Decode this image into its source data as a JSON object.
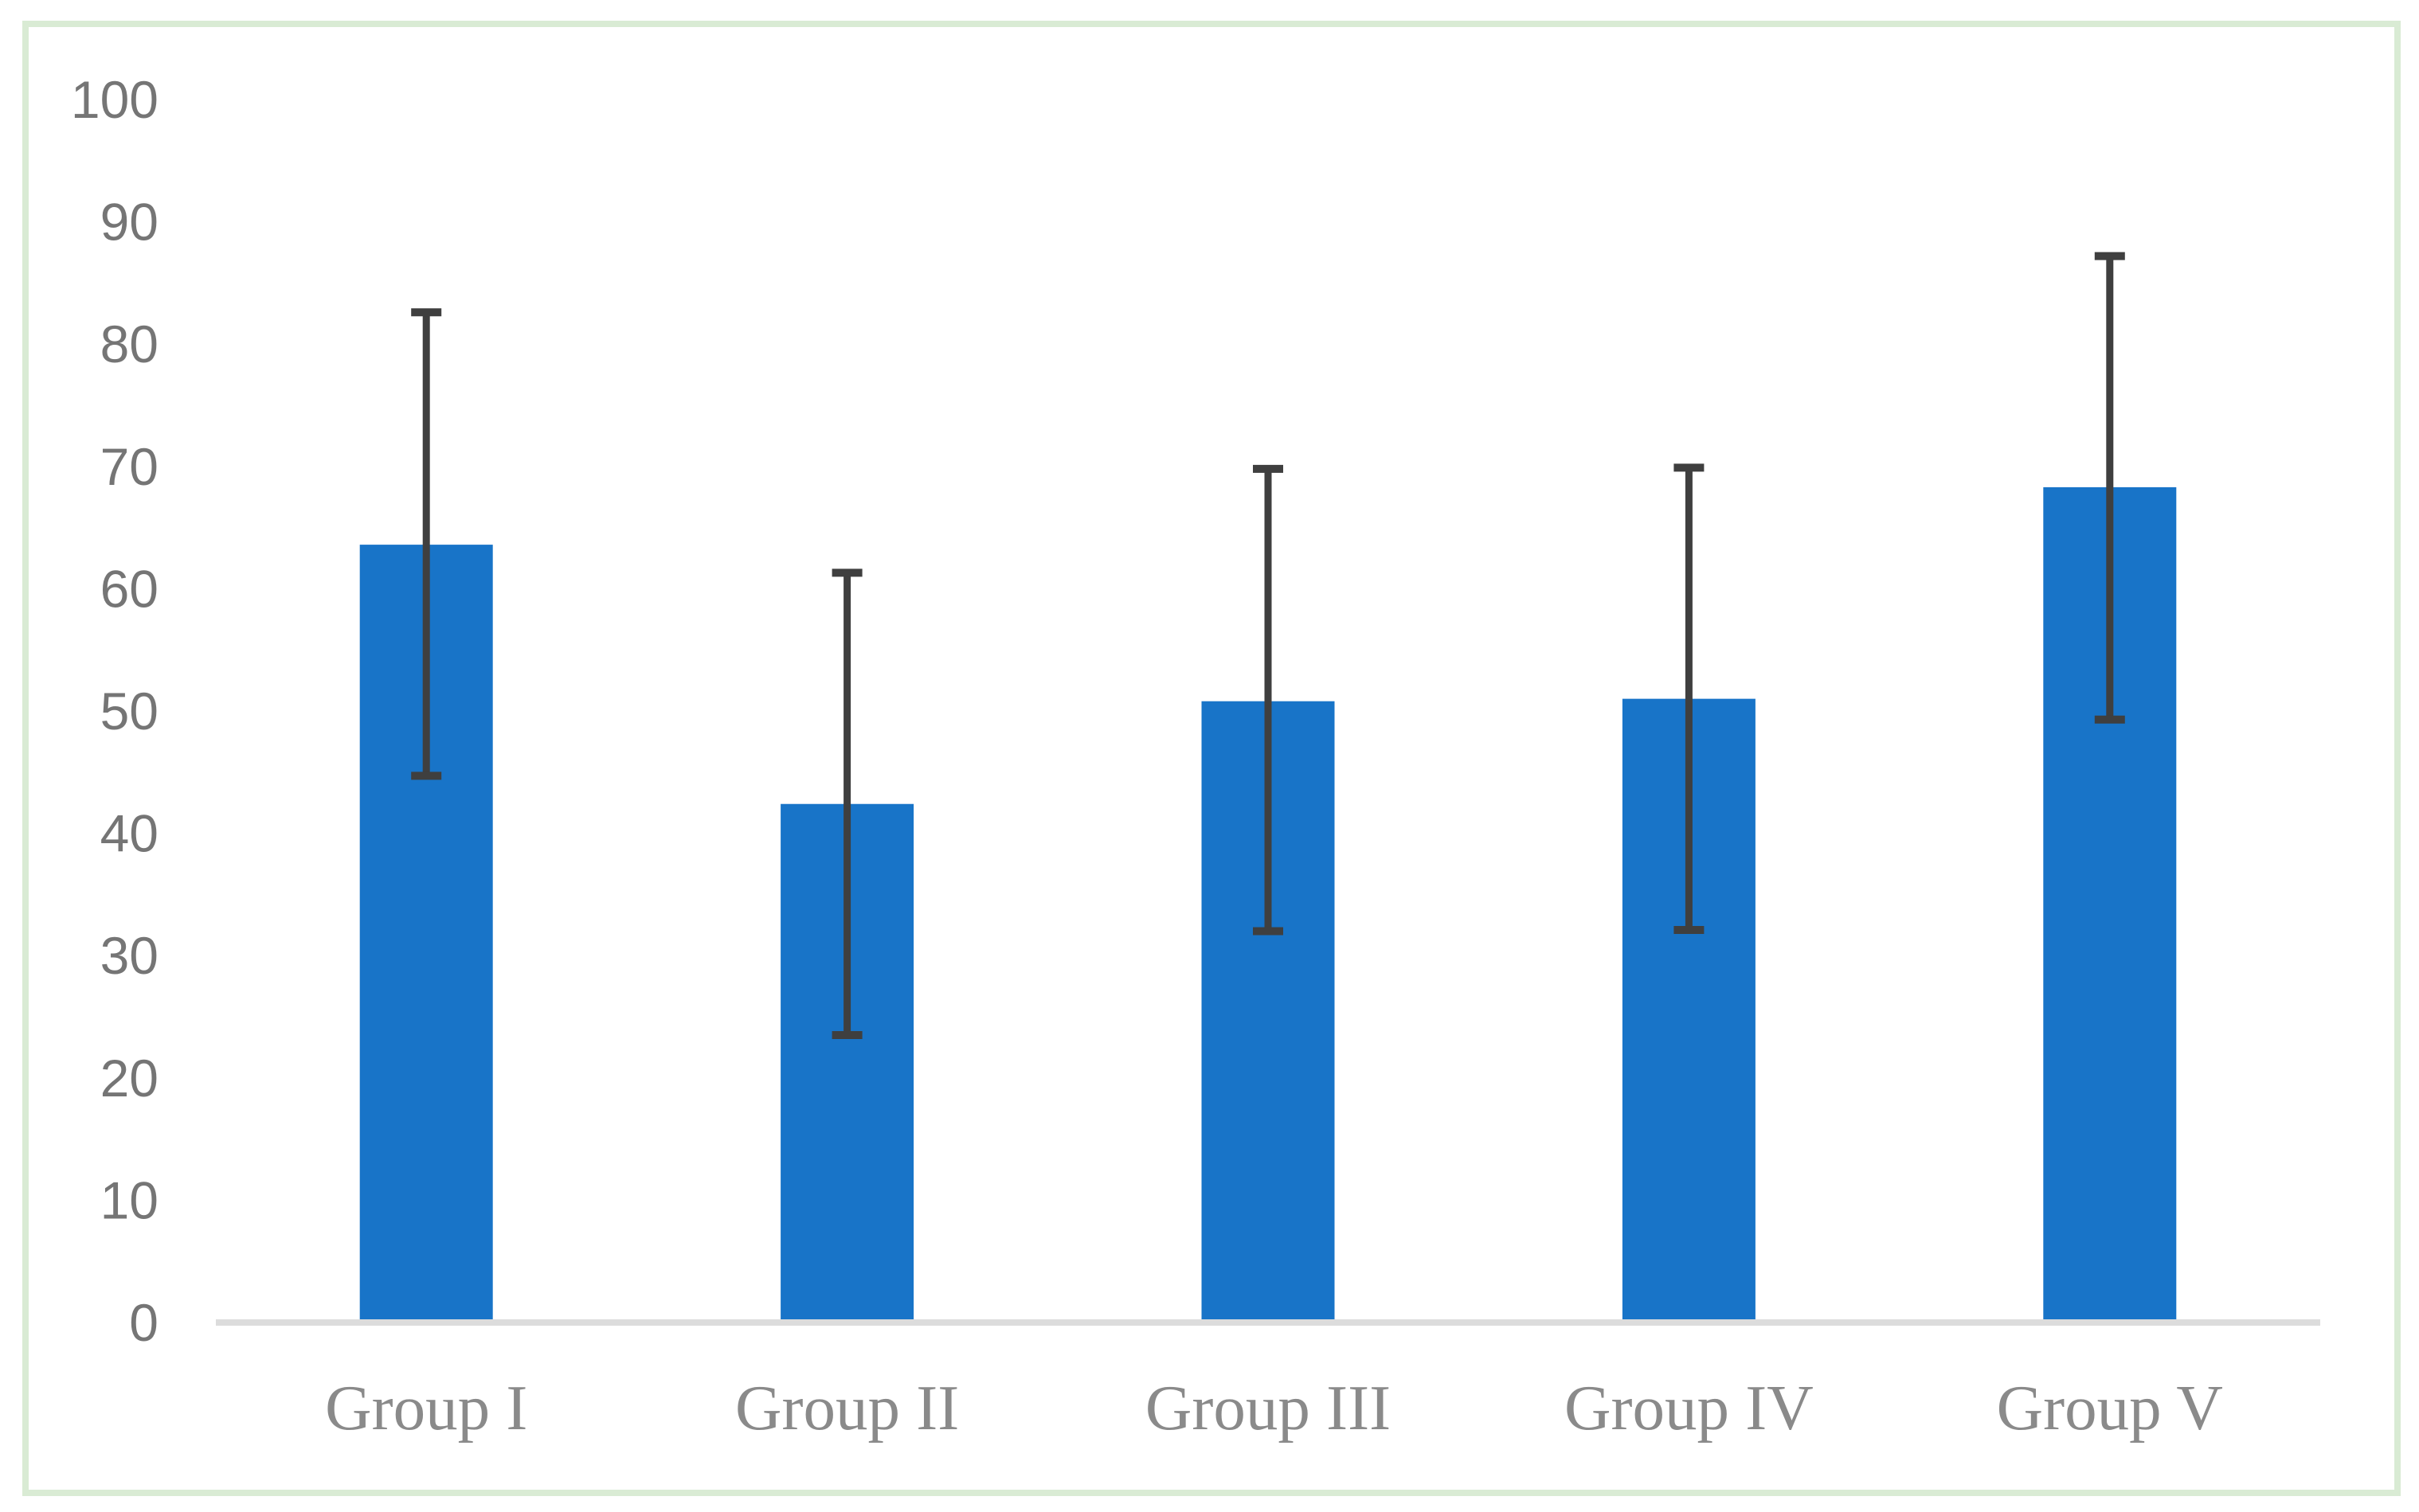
{
  "figure": {
    "border_color": "#D9EBD4",
    "background_color": "#FFFFFF"
  },
  "chart_data": {
    "type": "bar",
    "title": "",
    "xlabel": "",
    "ylabel": "",
    "categories": [
      "Group I",
      "Group II",
      "Group III",
      "Group IV",
      "Group V"
    ],
    "values": [
      63.6,
      42.4,
      50.8,
      51.0,
      68.3
    ],
    "error_bars": {
      "upper": [
        82.6,
        61.3,
        69.8,
        69.9,
        87.2
      ],
      "lower": [
        44.7,
        23.5,
        32.0,
        32.1,
        49.3
      ]
    },
    "ylim": [
      0,
      100
    ],
    "ytick_step": 10,
    "ytick_labels": [
      "0",
      "10",
      "20",
      "30",
      "40",
      "50",
      "60",
      "70",
      "80",
      "90",
      "100"
    ],
    "grid": "off",
    "legend": "none",
    "bar_color": "#1874C8",
    "error_bar_color": "#3F3F3F",
    "axis_line_color": "#DCDCDC",
    "ytick_label_color": "#757575",
    "category_label_color": "#8A8A8A"
  }
}
